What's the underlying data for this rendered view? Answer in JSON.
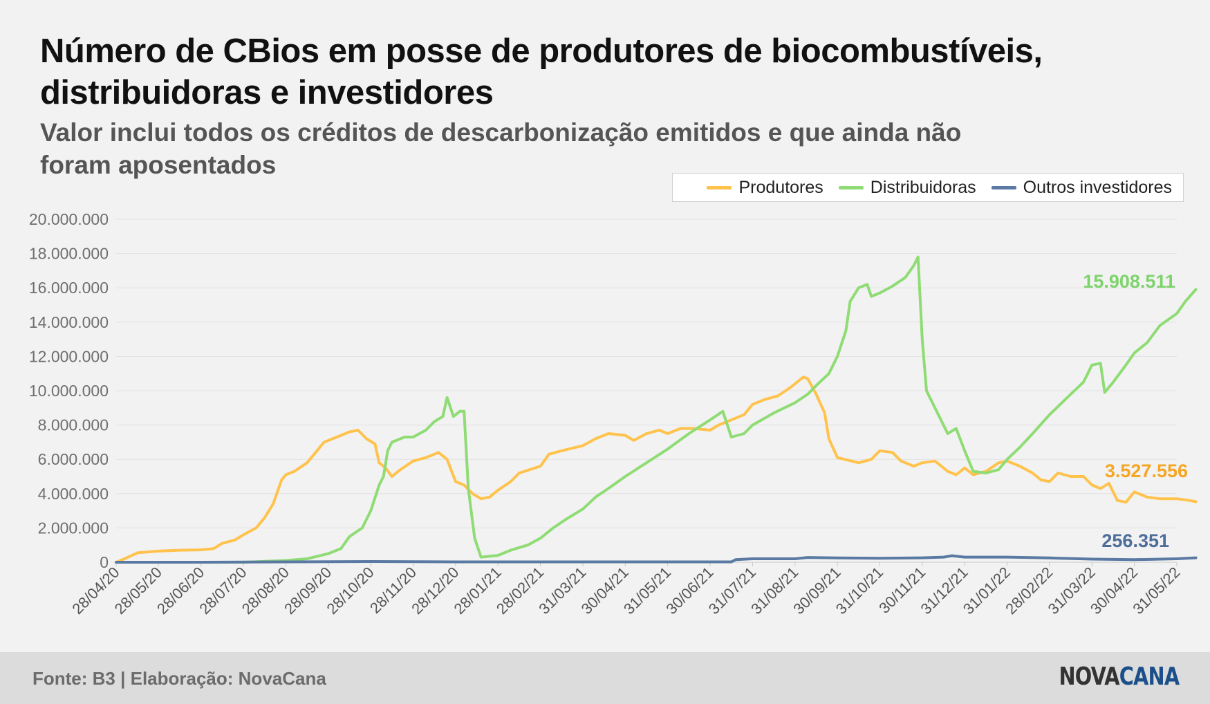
{
  "title": "Número de CBios em posse de produtores de biocombustíveis, distribuidoras e investidores",
  "subtitle": "Valor inclui todos os créditos de descarbonização emitidos e que ainda não foram aposentados",
  "footer": {
    "source": "Fonte: B3 | Elaboração: NovaCana",
    "logo_part1": "NOVA",
    "logo_part2": "CANA"
  },
  "colors": {
    "produtores": "#ffc34d",
    "distribuidoras": "#8fdc75",
    "outros": "#5a7aa3"
  },
  "chart_data": {
    "type": "line",
    "ylim": [
      0,
      20000000
    ],
    "yticks": [
      "0",
      "2.000.000",
      "4.000.000",
      "6.000.000",
      "8.000.000",
      "10.000.000",
      "12.000.000",
      "14.000.000",
      "16.000.000",
      "18.000.000",
      "20.000.000"
    ],
    "xticks": [
      "28/04/20",
      "28/05/20",
      "28/06/20",
      "28/07/20",
      "28/08/20",
      "28/09/20",
      "28/10/20",
      "28/11/20",
      "28/12/20",
      "28/01/21",
      "28/02/21",
      "31/03/21",
      "30/04/21",
      "31/05/21",
      "30/06/21",
      "31/07/21",
      "31/08/21",
      "30/09/21",
      "31/10/21",
      "30/11/21",
      "31/12/21",
      "31/01/22",
      "28/02/22",
      "31/03/22",
      "30/04/22",
      "31/05/22"
    ],
    "legend": "top-right",
    "grid": true,
    "series": [
      {
        "name": "Produtores",
        "end_label": "3.527.556",
        "points": [
          [
            0,
            0
          ],
          [
            0.2,
            200000
          ],
          [
            0.5,
            550000
          ],
          [
            1,
            650000
          ],
          [
            1.5,
            700000
          ],
          [
            2,
            720000
          ],
          [
            2.3,
            800000
          ],
          [
            2.5,
            1100000
          ],
          [
            2.8,
            1300000
          ],
          [
            3,
            1600000
          ],
          [
            3.3,
            2000000
          ],
          [
            3.5,
            2600000
          ],
          [
            3.7,
            3400000
          ],
          [
            3.9,
            4800000
          ],
          [
            4,
            5100000
          ],
          [
            4.2,
            5300000
          ],
          [
            4.5,
            5800000
          ],
          [
            4.7,
            6400000
          ],
          [
            4.9,
            7000000
          ],
          [
            5.2,
            7300000
          ],
          [
            5.5,
            7600000
          ],
          [
            5.7,
            7700000
          ],
          [
            5.9,
            7200000
          ],
          [
            6.1,
            6900000
          ],
          [
            6.2,
            5800000
          ],
          [
            6.35,
            5500000
          ],
          [
            6.5,
            5000000
          ],
          [
            6.7,
            5400000
          ],
          [
            7,
            5900000
          ],
          [
            7.3,
            6100000
          ],
          [
            7.6,
            6400000
          ],
          [
            7.8,
            6000000
          ],
          [
            8,
            4700000
          ],
          [
            8.2,
            4500000
          ],
          [
            8.4,
            4000000
          ],
          [
            8.6,
            3700000
          ],
          [
            8.8,
            3800000
          ],
          [
            9,
            4200000
          ],
          [
            9.3,
            4700000
          ],
          [
            9.5,
            5200000
          ],
          [
            10,
            5600000
          ],
          [
            10.2,
            6300000
          ],
          [
            10.5,
            6500000
          ],
          [
            11,
            6800000
          ],
          [
            11.3,
            7200000
          ],
          [
            11.6,
            7500000
          ],
          [
            12,
            7400000
          ],
          [
            12.2,
            7100000
          ],
          [
            12.5,
            7500000
          ],
          [
            12.8,
            7700000
          ],
          [
            13,
            7500000
          ],
          [
            13.3,
            7800000
          ],
          [
            13.6,
            7800000
          ],
          [
            14,
            7700000
          ],
          [
            14.2,
            8000000
          ],
          [
            14.5,
            8300000
          ],
          [
            14.8,
            8600000
          ],
          [
            15,
            9200000
          ],
          [
            15.3,
            9500000
          ],
          [
            15.6,
            9700000
          ],
          [
            15.9,
            10200000
          ],
          [
            16.1,
            10600000
          ],
          [
            16.2,
            10800000
          ],
          [
            16.3,
            10700000
          ],
          [
            16.5,
            9800000
          ],
          [
            16.7,
            8700000
          ],
          [
            16.8,
            7200000
          ],
          [
            17,
            6100000
          ],
          [
            17.5,
            5800000
          ],
          [
            17.8,
            6000000
          ],
          [
            18,
            6500000
          ],
          [
            18.3,
            6400000
          ],
          [
            18.5,
            5900000
          ],
          [
            18.8,
            5600000
          ],
          [
            19,
            5800000
          ],
          [
            19.3,
            5900000
          ],
          [
            19.6,
            5300000
          ],
          [
            19.8,
            5100000
          ],
          [
            20,
            5500000
          ],
          [
            20.2,
            5100000
          ],
          [
            20.5,
            5300000
          ],
          [
            20.8,
            5800000
          ],
          [
            21,
            5900000
          ],
          [
            21.3,
            5600000
          ],
          [
            21.6,
            5200000
          ],
          [
            21.8,
            4800000
          ],
          [
            22,
            4700000
          ],
          [
            22.2,
            5200000
          ],
          [
            22.5,
            5000000
          ],
          [
            22.8,
            5000000
          ],
          [
            23,
            4500000
          ],
          [
            23.2,
            4300000
          ],
          [
            23.4,
            4600000
          ],
          [
            23.6,
            3600000
          ],
          [
            23.8,
            3500000
          ],
          [
            24,
            4100000
          ],
          [
            24.3,
            3800000
          ],
          [
            24.6,
            3700000
          ],
          [
            25,
            3700000
          ],
          [
            25.3,
            3600000
          ],
          [
            25.45,
            3527556
          ]
        ]
      },
      {
        "name": "Distribuidoras",
        "end_label": "15.908.511",
        "points": [
          [
            0,
            0
          ],
          [
            1,
            0
          ],
          [
            2,
            0
          ],
          [
            3,
            0
          ],
          [
            3.5,
            50000
          ],
          [
            4,
            100000
          ],
          [
            4.5,
            200000
          ],
          [
            5,
            500000
          ],
          [
            5.3,
            800000
          ],
          [
            5.5,
            1500000
          ],
          [
            5.8,
            2000000
          ],
          [
            6,
            3000000
          ],
          [
            6.2,
            4500000
          ],
          [
            6.3,
            5000000
          ],
          [
            6.4,
            6500000
          ],
          [
            6.5,
            7000000
          ],
          [
            6.8,
            7300000
          ],
          [
            7,
            7300000
          ],
          [
            7.3,
            7700000
          ],
          [
            7.5,
            8200000
          ],
          [
            7.7,
            8500000
          ],
          [
            7.8,
            9600000
          ],
          [
            7.95,
            8500000
          ],
          [
            8.1,
            8800000
          ],
          [
            8.2,
            8800000
          ],
          [
            8.3,
            4300000
          ],
          [
            8.45,
            1400000
          ],
          [
            8.6,
            300000
          ],
          [
            9,
            400000
          ],
          [
            9.3,
            700000
          ],
          [
            9.7,
            1000000
          ],
          [
            10,
            1400000
          ],
          [
            10.3,
            2000000
          ],
          [
            10.6,
            2500000
          ],
          [
            11,
            3100000
          ],
          [
            11.3,
            3800000
          ],
          [
            11.6,
            4300000
          ],
          [
            12,
            5000000
          ],
          [
            12.5,
            5800000
          ],
          [
            13,
            6600000
          ],
          [
            13.5,
            7500000
          ],
          [
            14,
            8300000
          ],
          [
            14.3,
            8800000
          ],
          [
            14.5,
            7300000
          ],
          [
            14.8,
            7500000
          ],
          [
            15,
            8000000
          ],
          [
            15.5,
            8700000
          ],
          [
            16,
            9300000
          ],
          [
            16.3,
            9800000
          ],
          [
            16.5,
            10300000
          ],
          [
            16.8,
            11000000
          ],
          [
            17,
            12000000
          ],
          [
            17.2,
            13500000
          ],
          [
            17.3,
            15200000
          ],
          [
            17.5,
            16000000
          ],
          [
            17.7,
            16200000
          ],
          [
            17.8,
            15500000
          ],
          [
            18,
            15700000
          ],
          [
            18.3,
            16100000
          ],
          [
            18.6,
            16600000
          ],
          [
            18.8,
            17300000
          ],
          [
            18.9,
            17800000
          ],
          [
            19,
            13000000
          ],
          [
            19.1,
            10000000
          ],
          [
            19.3,
            9000000
          ],
          [
            19.6,
            7500000
          ],
          [
            19.8,
            7800000
          ],
          [
            20,
            6500000
          ],
          [
            20.2,
            5300000
          ],
          [
            20.5,
            5200000
          ],
          [
            20.8,
            5400000
          ],
          [
            21,
            6000000
          ],
          [
            21.3,
            6700000
          ],
          [
            21.6,
            7500000
          ],
          [
            22,
            8600000
          ],
          [
            22.5,
            9800000
          ],
          [
            22.8,
            10500000
          ],
          [
            23,
            11500000
          ],
          [
            23.2,
            11600000
          ],
          [
            23.3,
            9900000
          ],
          [
            23.5,
            10500000
          ],
          [
            23.8,
            11500000
          ],
          [
            24,
            12200000
          ],
          [
            24.3,
            12800000
          ],
          [
            24.6,
            13800000
          ],
          [
            25,
            14500000
          ],
          [
            25.2,
            15200000
          ],
          [
            25.45,
            15908511
          ]
        ]
      },
      {
        "name": "Outros investidores",
        "end_label": "256.351",
        "points": [
          [
            0,
            0
          ],
          [
            2,
            0
          ],
          [
            4,
            20000
          ],
          [
            6,
            40000
          ],
          [
            8,
            20000
          ],
          [
            10,
            20000
          ],
          [
            12,
            20000
          ],
          [
            14,
            20000
          ],
          [
            14.5,
            20000
          ],
          [
            14.6,
            150000
          ],
          [
            15,
            200000
          ],
          [
            16,
            200000
          ],
          [
            16.3,
            280000
          ],
          [
            17,
            250000
          ],
          [
            18,
            230000
          ],
          [
            19,
            260000
          ],
          [
            19.5,
            300000
          ],
          [
            19.7,
            380000
          ],
          [
            20,
            300000
          ],
          [
            21,
            300000
          ],
          [
            22,
            250000
          ],
          [
            23,
            180000
          ],
          [
            24,
            150000
          ],
          [
            25,
            200000
          ],
          [
            25.45,
            256351
          ]
        ]
      }
    ]
  }
}
